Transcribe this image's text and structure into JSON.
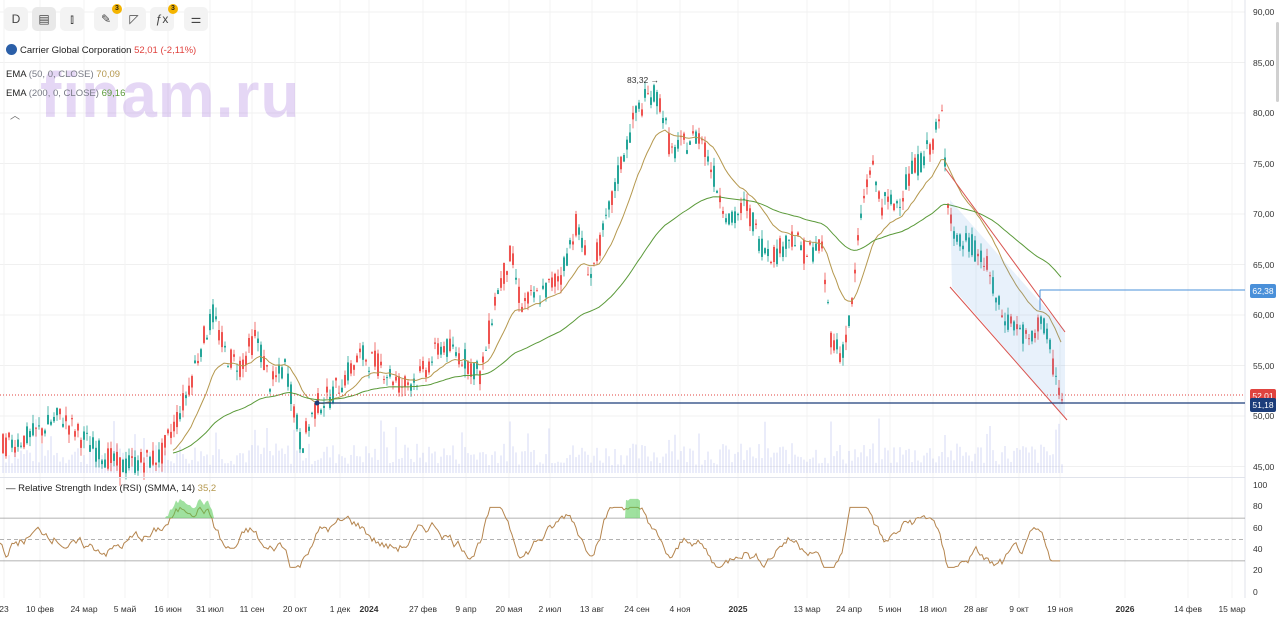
{
  "toolbar": {
    "interval_label": "D",
    "buttons": [
      {
        "name": "interval-button",
        "glyph": "D"
      },
      {
        "name": "chart-type-icon",
        "glyph": "▤"
      },
      {
        "name": "candles-icon",
        "glyph": "⫾"
      },
      {
        "name": "draw-tools-icon",
        "glyph": "✎",
        "badge": "3"
      },
      {
        "name": "pen-icon",
        "glyph": "◸"
      },
      {
        "name": "indicators-icon",
        "glyph": "ƒx",
        "badge": "3"
      },
      {
        "name": "settings-icon",
        "glyph": "⚌"
      }
    ]
  },
  "symbol": {
    "name": "Carrier Global Corporation",
    "price": "52,01",
    "change": "(-2,11%)"
  },
  "indicators": [
    {
      "name": "EMA",
      "params": "(50, 0, CLOSE)",
      "value": "70,09",
      "color": "#b5984e"
    },
    {
      "name": "EMA",
      "params": "(200, 0, CLOSE)",
      "value": "69,16",
      "color": "#5b9a3a"
    }
  ],
  "watermark": "finam.ru",
  "rsi": {
    "label": "Relative Strength Index (RSI) (SMMA, 14)",
    "value": "35,2"
  },
  "price_axis": [
    "90,00",
    "85,00",
    "80,00",
    "75,00",
    "70,00",
    "65,00",
    "60,00",
    "55,00",
    "50,00",
    "45,00"
  ],
  "rsi_axis": [
    "100",
    "80",
    "60",
    "40",
    "20",
    "0"
  ],
  "price_tags": {
    "level": "62,38",
    "last": "52,01",
    "support": "51,18"
  },
  "peak_label": "83,32 →",
  "time_axis": [
    "23",
    "10 фев",
    "24 мар",
    "5 май",
    "16 июн",
    "31 июл",
    "11 сен",
    "20 окт",
    "1 дек",
    "2024",
    "27 фев",
    "9 апр",
    "20 мая",
    "2 июл",
    "13 авг",
    "24 сен",
    "4 ноя",
    "2025",
    "13 мар",
    "24 апр",
    "5 июн",
    "18 июл",
    "28 авг",
    "9 окт",
    "19 ноя",
    "2026",
    "14 фев",
    "15 мар"
  ],
  "colors": {
    "up": "#26a69a",
    "down": "#ef5350",
    "ema50": "#b5984e",
    "ema200": "#5b9a3a",
    "level": "#2962ff",
    "support": "#1c3d7a"
  },
  "chart_data": {
    "type": "candlestick",
    "price_range": [
      45,
      90
    ],
    "ema50_last": 70.09,
    "ema200_last": 69.16,
    "last_price": 52.01,
    "peak": 83.32,
    "horizontal_levels": [
      62.38,
      51.18
    ],
    "rsi_levels": [
      70,
      50,
      30
    ],
    "rsi_last": 35.2
  }
}
